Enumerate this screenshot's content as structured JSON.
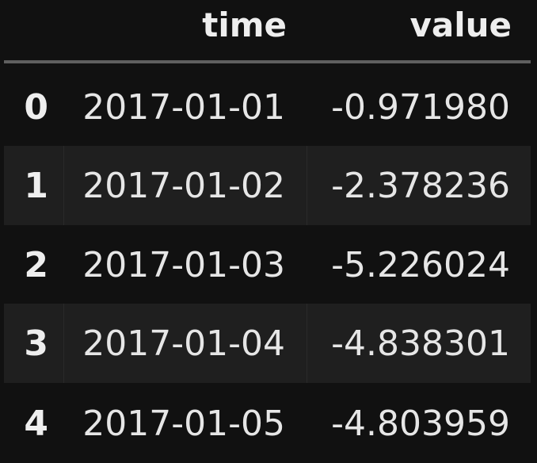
{
  "table": {
    "columns": [
      "time",
      "value"
    ],
    "rows": [
      {
        "index": "0",
        "time": "2017-01-01",
        "value": "-0.971980"
      },
      {
        "index": "1",
        "time": "2017-01-02",
        "value": "-2.378236"
      },
      {
        "index": "2",
        "time": "2017-01-03",
        "value": "-5.226024"
      },
      {
        "index": "3",
        "time": "2017-01-04",
        "value": "-4.838301"
      },
      {
        "index": "4",
        "time": "2017-01-05",
        "value": "-4.803959"
      }
    ]
  },
  "colors": {
    "background": "#111111",
    "stripe": "#1f1f1f",
    "header_rule": "#5f5f5f",
    "text": "#e6e6e6"
  }
}
